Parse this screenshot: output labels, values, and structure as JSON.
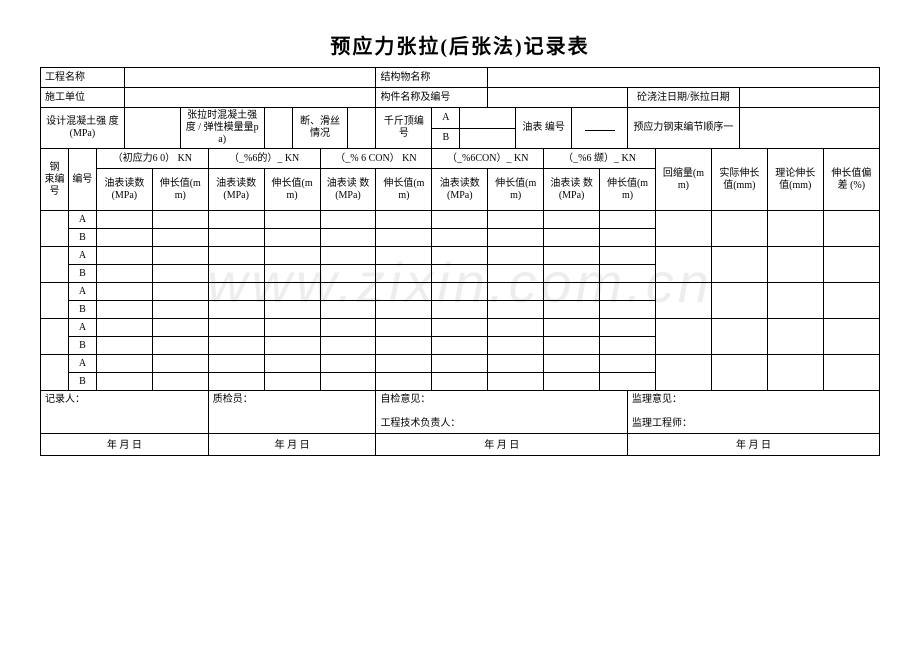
{
  "title": "预应力张拉(后张法)记录表",
  "watermark": "www.zixin.com.cn",
  "header": {
    "project_name_label": "工程名称",
    "structure_name_label": "结构物名称",
    "construction_unit_label": "施工单位",
    "component_name_label": "构件名称及编号",
    "pour_date_label": "砼浇注日期/张拉日期",
    "design_strength_label": "设计混凝土强 度(MPa)",
    "tension_strength_label": "张拉时混凝土强度 / 弹性模量量pa)",
    "break_slip_label": "断、滑丝情况",
    "jack_no_label": "千斤顶编号",
    "a_label": "A",
    "b_label": "B",
    "gauge_no_label": "油表 编号",
    "tendon_no_label": "预应力钢束编节顺序一",
    "tendon_bundle_label": "钢 束编 号",
    "sub_no_label": "编号"
  },
  "stages": {
    "s1": "（初应力6 0） KN",
    "s2": "（_%6的）_ KN",
    "s3": "（_% 6 CON） KN",
    "s4": "（_%6CON）_ KN",
    "s5": "（_%6 缬）_ KN"
  },
  "cols": {
    "gauge_mpa": "油表读数(MPa)",
    "gauge_mpa2": "油表读 数(MPa)",
    "elong_mm": "伸长值(mm)",
    "retract_mm": "回缩量(mm)",
    "actual_elong": "实际伸长值(mm)",
    "theory_elong": "理论伸长值(mm)",
    "deviation": "伸长值偏差 (%)"
  },
  "ab_rows": [
    "A",
    "B",
    "A",
    "B",
    "A",
    "B",
    "A",
    "B",
    "A",
    "B"
  ],
  "footer": {
    "recorder": "记录人：",
    "inspector": "质检员：",
    "self_check": "自检意见：",
    "tech_lead": "工程技术负责人：",
    "supervisor_opinion": "监理意见：",
    "supervisor_eng": "监理工程师：",
    "date": "年 月 日"
  }
}
